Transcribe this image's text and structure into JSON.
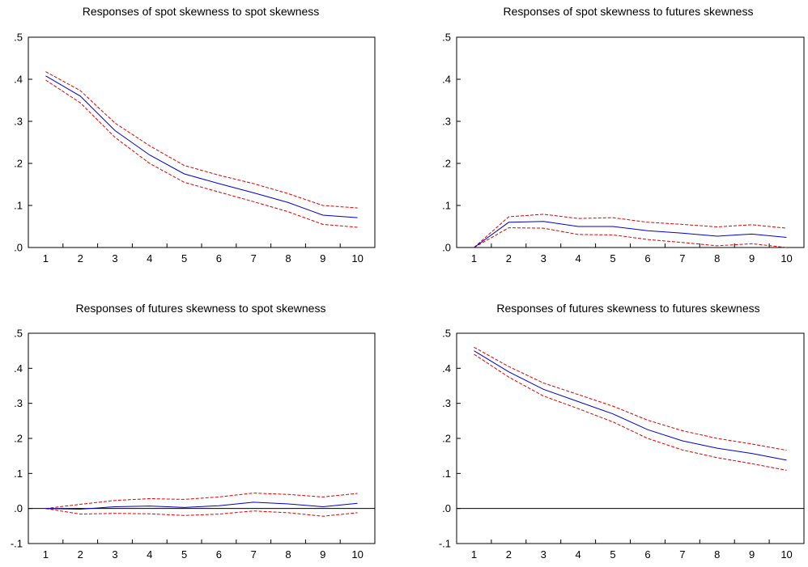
{
  "chart_data": [
    {
      "type": "line",
      "title": "Responses of spot skewness to spot skewness",
      "x": [
        1,
        2,
        3,
        4,
        5,
        6,
        7,
        8,
        9,
        10
      ],
      "xlim": [
        1,
        10
      ],
      "ylim": [
        0,
        0.5
      ],
      "y_ticks": [
        ".0",
        ".1",
        ".2",
        ".3",
        ".4",
        ".5"
      ],
      "y_tick_values": [
        0,
        0.1,
        0.2,
        0.3,
        0.4,
        0.5
      ],
      "zero_line": false,
      "grid": false,
      "series": [
        {
          "role": "response",
          "style": "solid",
          "color": "#0000cc",
          "values": [
            0.408,
            0.36,
            0.278,
            0.22,
            0.175,
            0.152,
            0.13,
            0.107,
            0.077,
            0.071
          ]
        },
        {
          "role": "upper",
          "style": "dashed",
          "color": "#e00000",
          "values": [
            0.418,
            0.373,
            0.296,
            0.242,
            0.195,
            0.172,
            0.152,
            0.128,
            0.1,
            0.094
          ]
        },
        {
          "role": "lower",
          "style": "dashed",
          "color": "#e00000",
          "values": [
            0.398,
            0.344,
            0.262,
            0.2,
            0.155,
            0.132,
            0.109,
            0.085,
            0.055,
            0.048
          ]
        }
      ]
    },
    {
      "type": "line",
      "title": "Responses of spot skewness to futures skewness",
      "x": [
        1,
        2,
        3,
        4,
        5,
        6,
        7,
        8,
        9,
        10
      ],
      "xlim": [
        1,
        10
      ],
      "ylim": [
        0,
        0.5
      ],
      "y_ticks": [
        ".0",
        ".1",
        ".2",
        ".3",
        ".4",
        ".5"
      ],
      "y_tick_values": [
        0,
        0.1,
        0.2,
        0.3,
        0.4,
        0.5
      ],
      "zero_line": false,
      "grid": false,
      "series": [
        {
          "role": "response",
          "style": "solid",
          "color": "#0000cc",
          "values": [
            0.0,
            0.06,
            0.062,
            0.05,
            0.05,
            0.04,
            0.034,
            0.027,
            0.032,
            0.024
          ]
        },
        {
          "role": "upper",
          "style": "dashed",
          "color": "#e00000",
          "values": [
            0.0,
            0.073,
            0.079,
            0.069,
            0.071,
            0.06,
            0.055,
            0.049,
            0.054,
            0.046
          ]
        },
        {
          "role": "lower",
          "style": "dashed",
          "color": "#e00000",
          "values": [
            0.0,
            0.047,
            0.046,
            0.031,
            0.03,
            0.019,
            0.012,
            0.004,
            0.009,
            0.0
          ]
        }
      ]
    },
    {
      "type": "line",
      "title": "Responses of futures skewness to spot skewness",
      "x": [
        1,
        2,
        3,
        4,
        5,
        6,
        7,
        8,
        9,
        10
      ],
      "xlim": [
        1,
        10
      ],
      "ylim": [
        -0.1,
        0.5
      ],
      "y_ticks": [
        "-.1",
        ".0",
        ".1",
        ".2",
        ".3",
        ".4",
        ".5"
      ],
      "y_tick_values": [
        -0.1,
        0,
        0.1,
        0.2,
        0.3,
        0.4,
        0.5
      ],
      "zero_line": true,
      "grid": false,
      "series": [
        {
          "role": "response",
          "style": "solid",
          "color": "#0000cc",
          "values": [
            0.0,
            -0.002,
            0.005,
            0.007,
            0.003,
            0.008,
            0.018,
            0.013,
            0.005,
            0.015
          ]
        },
        {
          "role": "upper",
          "style": "dashed",
          "color": "#e00000",
          "values": [
            0.0,
            0.012,
            0.023,
            0.028,
            0.026,
            0.033,
            0.044,
            0.04,
            0.033,
            0.043
          ]
        },
        {
          "role": "lower",
          "style": "dashed",
          "color": "#e00000",
          "values": [
            0.0,
            -0.016,
            -0.014,
            -0.015,
            -0.02,
            -0.016,
            -0.007,
            -0.012,
            -0.022,
            -0.012
          ]
        }
      ]
    },
    {
      "type": "line",
      "title": "Responses of futures skewness to futures skewness",
      "x": [
        1,
        2,
        3,
        4,
        5,
        6,
        7,
        8,
        9,
        10
      ],
      "xlim": [
        1,
        10
      ],
      "ylim": [
        -0.1,
        0.5
      ],
      "y_ticks": [
        "-.1",
        ".0",
        ".1",
        ".2",
        ".3",
        ".4",
        ".5"
      ],
      "y_tick_values": [
        -0.1,
        0,
        0.1,
        0.2,
        0.3,
        0.4,
        0.5
      ],
      "zero_line": true,
      "grid": false,
      "series": [
        {
          "role": "response",
          "style": "solid",
          "color": "#0000cc",
          "values": [
            0.45,
            0.39,
            0.34,
            0.305,
            0.27,
            0.225,
            0.193,
            0.172,
            0.157,
            0.138
          ]
        },
        {
          "role": "upper",
          "style": "dashed",
          "color": "#e00000",
          "values": [
            0.46,
            0.405,
            0.358,
            0.325,
            0.292,
            0.252,
            0.222,
            0.2,
            0.184,
            0.166
          ]
        },
        {
          "role": "lower",
          "style": "dashed",
          "color": "#e00000",
          "values": [
            0.44,
            0.375,
            0.321,
            0.285,
            0.247,
            0.2,
            0.167,
            0.145,
            0.128,
            0.109
          ]
        }
      ]
    }
  ]
}
